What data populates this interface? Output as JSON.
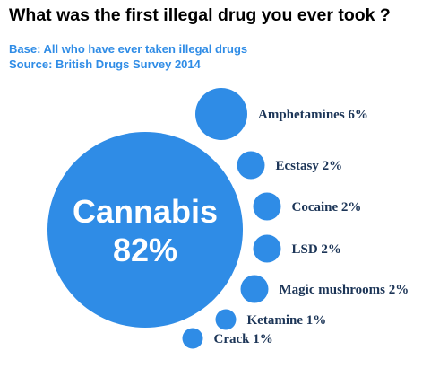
{
  "header": {
    "title": "What was the first illegal drug you ever took ?",
    "base": "Base: All who have ever taken illegal drugs",
    "source": "Source: British Drugs Survey 2014"
  },
  "colors": {
    "bubble": "#2f8ce6",
    "label": "#1c3557",
    "inner_text": "#ffffff"
  },
  "chart_data": {
    "type": "bubble",
    "title": "What was the first illegal drug you ever took ?",
    "unit": "%",
    "items": [
      {
        "label": "Cannabis",
        "value": 82,
        "text": "82%"
      },
      {
        "label": "Amphetamines",
        "value": 6,
        "text": "Amphetamines 6%"
      },
      {
        "label": "Ecstasy",
        "value": 2,
        "text": "Ecstasy 2%"
      },
      {
        "label": "Cocaine",
        "value": 2,
        "text": "Cocaine 2%"
      },
      {
        "label": "LSD",
        "value": 2,
        "text": "LSD 2%"
      },
      {
        "label": "Magic mushrooms",
        "value": 2,
        "text": "Magic mushrooms 2%"
      },
      {
        "label": "Ketamine",
        "value": 1,
        "text": "Ketamine 1%"
      },
      {
        "label": "Crack",
        "value": 1,
        "text": "Crack 1%"
      }
    ]
  }
}
